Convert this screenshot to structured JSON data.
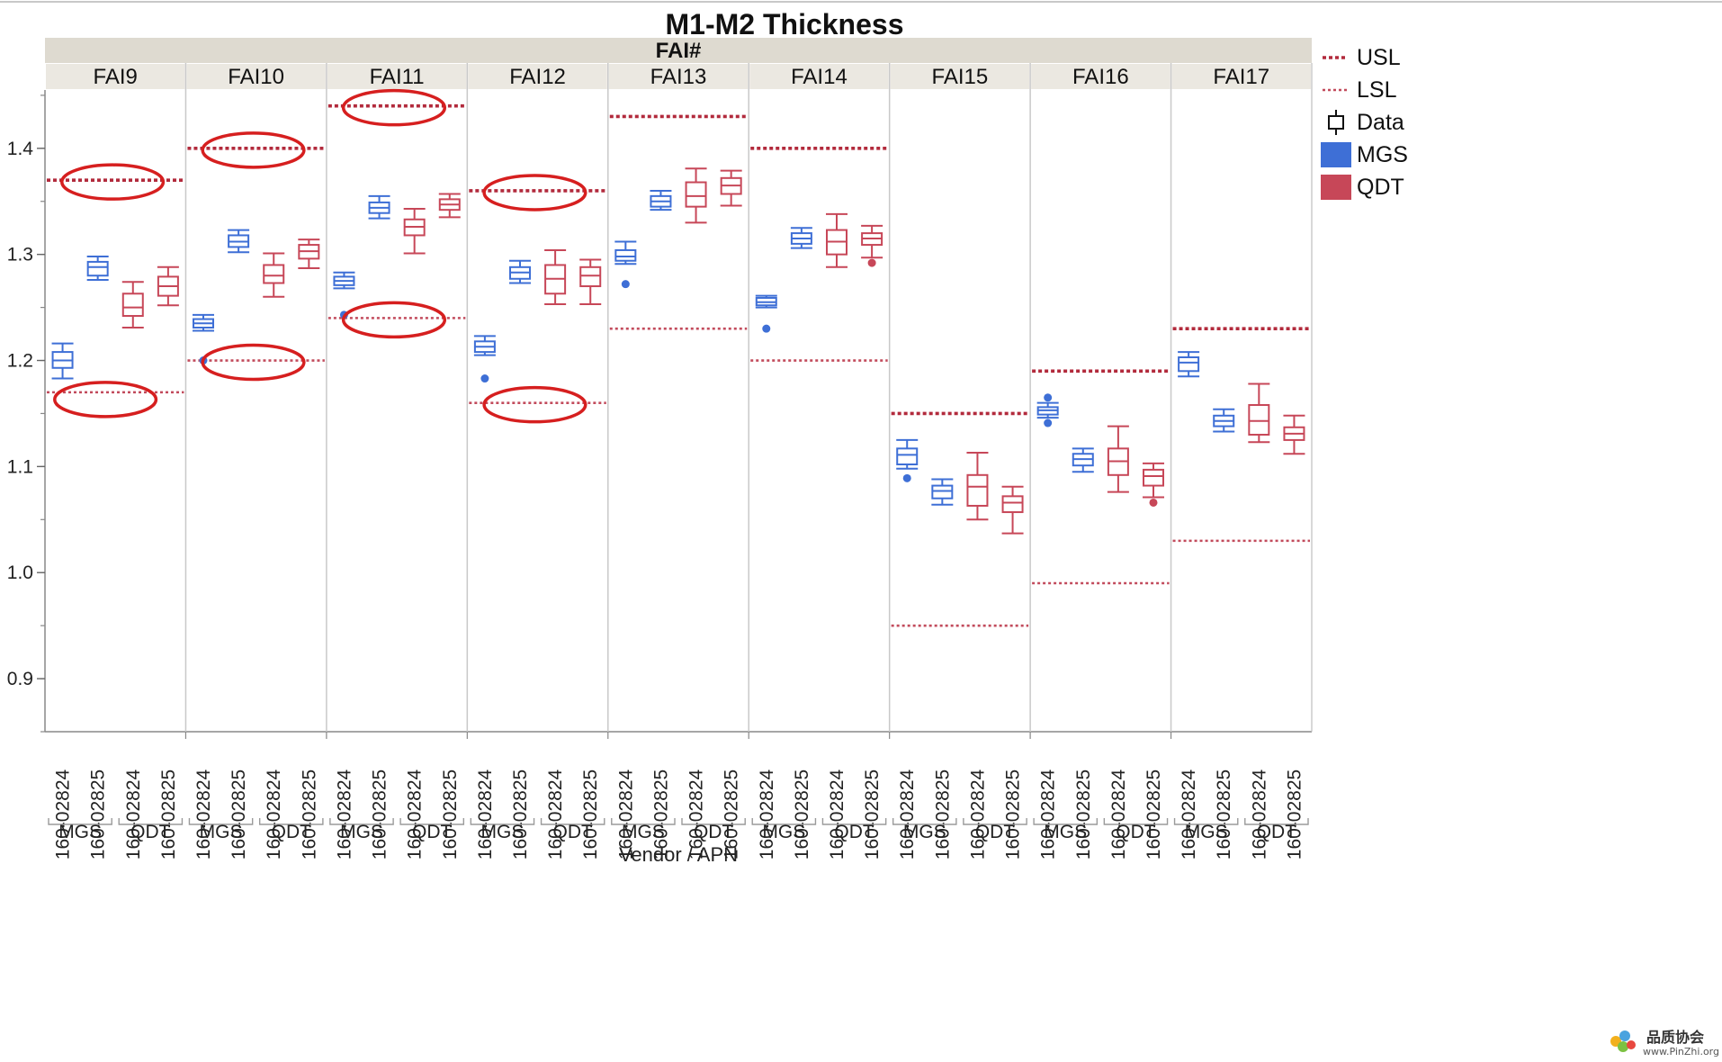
{
  "chart_data": {
    "type": "boxplot",
    "title": "M1-M2 Thickness",
    "group_header": "FAI#",
    "xlabel": "Vendor / APN",
    "ylabel": "",
    "ylim": [
      0.85,
      1.455
    ],
    "yticks": [
      0.9,
      1.0,
      1.1,
      1.2,
      1.3,
      1.4
    ],
    "ytick_labels": [
      "0.9",
      "1.0",
      "1.1",
      "1.2",
      "1.3",
      "1.4"
    ],
    "colors": {
      "MGS": "#3e6fd6",
      "QDT": "#c74758",
      "spec": "#b22a3c",
      "highlight": "#d61f1f"
    },
    "legend": {
      "position": "right",
      "items": [
        {
          "label": "USL",
          "kind": "usl"
        },
        {
          "label": "LSL",
          "kind": "lsl"
        },
        {
          "label": "Data",
          "kind": "box"
        },
        {
          "label": "MGS",
          "kind": "swatch",
          "color": "#3e6fd6"
        },
        {
          "label": "QDT",
          "kind": "swatch",
          "color": "#c74758"
        }
      ]
    },
    "panels": [
      {
        "name": "FAI9",
        "usl": 1.37,
        "lsl": 1.17,
        "highlight": [
          "usl",
          "lsl"
        ],
        "boxes": [
          {
            "vendor": "MGS",
            "apn": "160-02824",
            "min": 1.183,
            "q1": 1.193,
            "median": 1.2,
            "q3": 1.208,
            "max": 1.216,
            "outliers": []
          },
          {
            "vendor": "MGS",
            "apn": "160-02825",
            "min": 1.276,
            "q1": 1.28,
            "median": 1.288,
            "q3": 1.293,
            "max": 1.298,
            "outliers": []
          },
          {
            "vendor": "QDT",
            "apn": "160-02824",
            "min": 1.231,
            "q1": 1.242,
            "median": 1.25,
            "q3": 1.263,
            "max": 1.274,
            "outliers": []
          },
          {
            "vendor": "QDT",
            "apn": "160-02825",
            "min": 1.252,
            "q1": 1.261,
            "median": 1.27,
            "q3": 1.279,
            "max": 1.288,
            "outliers": []
          }
        ]
      },
      {
        "name": "FAI10",
        "usl": 1.4,
        "lsl": 1.2,
        "highlight": [
          "usl",
          "lsl"
        ],
        "boxes": [
          {
            "vendor": "MGS",
            "apn": "160-02824",
            "min": 1.228,
            "q1": 1.231,
            "median": 1.235,
            "q3": 1.239,
            "max": 1.243,
            "outliers": [
              1.2
            ]
          },
          {
            "vendor": "MGS",
            "apn": "160-02825",
            "min": 1.302,
            "q1": 1.307,
            "median": 1.312,
            "q3": 1.318,
            "max": 1.323,
            "outliers": []
          },
          {
            "vendor": "QDT",
            "apn": "160-02824",
            "min": 1.26,
            "q1": 1.273,
            "median": 1.28,
            "q3": 1.29,
            "max": 1.301,
            "outliers": []
          },
          {
            "vendor": "QDT",
            "apn": "160-02825",
            "min": 1.287,
            "q1": 1.296,
            "median": 1.303,
            "q3": 1.309,
            "max": 1.314,
            "outliers": []
          }
        ]
      },
      {
        "name": "FAI11",
        "usl": 1.44,
        "lsl": 1.24,
        "highlight": [
          "usl",
          "lsl"
        ],
        "boxes": [
          {
            "vendor": "MGS",
            "apn": "160-02824",
            "min": 1.268,
            "q1": 1.271,
            "median": 1.275,
            "q3": 1.279,
            "max": 1.283,
            "outliers": [
              1.243
            ]
          },
          {
            "vendor": "MGS",
            "apn": "160-02825",
            "min": 1.334,
            "q1": 1.339,
            "median": 1.344,
            "q3": 1.349,
            "max": 1.355,
            "outliers": []
          },
          {
            "vendor": "QDT",
            "apn": "160-02824",
            "min": 1.301,
            "q1": 1.318,
            "median": 1.326,
            "q3": 1.333,
            "max": 1.343,
            "outliers": []
          },
          {
            "vendor": "QDT",
            "apn": "160-02825",
            "min": 1.335,
            "q1": 1.342,
            "median": 1.347,
            "q3": 1.352,
            "max": 1.357,
            "outliers": []
          }
        ]
      },
      {
        "name": "FAI12",
        "usl": 1.36,
        "lsl": 1.16,
        "highlight": [
          "usl",
          "lsl"
        ],
        "boxes": [
          {
            "vendor": "MGS",
            "apn": "160-02824",
            "min": 1.205,
            "q1": 1.208,
            "median": 1.213,
            "q3": 1.218,
            "max": 1.223,
            "outliers": [
              1.183
            ]
          },
          {
            "vendor": "MGS",
            "apn": "160-02825",
            "min": 1.273,
            "q1": 1.277,
            "median": 1.283,
            "q3": 1.288,
            "max": 1.294,
            "outliers": []
          },
          {
            "vendor": "QDT",
            "apn": "160-02824",
            "min": 1.253,
            "q1": 1.263,
            "median": 1.277,
            "q3": 1.29,
            "max": 1.304,
            "outliers": []
          },
          {
            "vendor": "QDT",
            "apn": "160-02825",
            "min": 1.253,
            "q1": 1.27,
            "median": 1.28,
            "q3": 1.288,
            "max": 1.295,
            "outliers": []
          }
        ]
      },
      {
        "name": "FAI13",
        "usl": 1.43,
        "lsl": 1.23,
        "highlight": [],
        "boxes": [
          {
            "vendor": "MGS",
            "apn": "160-02824",
            "min": 1.291,
            "q1": 1.294,
            "median": 1.298,
            "q3": 1.304,
            "max": 1.312,
            "outliers": [
              1.272
            ]
          },
          {
            "vendor": "MGS",
            "apn": "160-02825",
            "min": 1.342,
            "q1": 1.345,
            "median": 1.35,
            "q3": 1.355,
            "max": 1.36,
            "outliers": []
          },
          {
            "vendor": "QDT",
            "apn": "160-02824",
            "min": 1.33,
            "q1": 1.345,
            "median": 1.355,
            "q3": 1.368,
            "max": 1.381,
            "outliers": []
          },
          {
            "vendor": "QDT",
            "apn": "160-02825",
            "min": 1.346,
            "q1": 1.357,
            "median": 1.365,
            "q3": 1.372,
            "max": 1.379,
            "outliers": []
          }
        ]
      },
      {
        "name": "FAI14",
        "usl": 1.4,
        "lsl": 1.2,
        "highlight": [],
        "boxes": [
          {
            "vendor": "MGS",
            "apn": "160-02824",
            "min": 1.25,
            "q1": 1.252,
            "median": 1.255,
            "q3": 1.259,
            "max": 1.261,
            "outliers": [
              1.23
            ]
          },
          {
            "vendor": "MGS",
            "apn": "160-02825",
            "min": 1.306,
            "q1": 1.31,
            "median": 1.315,
            "q3": 1.32,
            "max": 1.325,
            "outliers": []
          },
          {
            "vendor": "QDT",
            "apn": "160-02824",
            "min": 1.288,
            "q1": 1.3,
            "median": 1.312,
            "q3": 1.323,
            "max": 1.338,
            "outliers": []
          },
          {
            "vendor": "QDT",
            "apn": "160-02825",
            "min": 1.297,
            "q1": 1.309,
            "median": 1.315,
            "q3": 1.32,
            "max": 1.327,
            "outliers": [
              1.292
            ]
          }
        ]
      },
      {
        "name": "FAI15",
        "usl": 1.15,
        "lsl": 0.95,
        "highlight": [],
        "boxes": [
          {
            "vendor": "MGS",
            "apn": "160-02824",
            "min": 1.098,
            "q1": 1.102,
            "median": 1.111,
            "q3": 1.117,
            "max": 1.125,
            "outliers": [
              1.089
            ]
          },
          {
            "vendor": "MGS",
            "apn": "160-02825",
            "min": 1.064,
            "q1": 1.07,
            "median": 1.077,
            "q3": 1.082,
            "max": 1.088,
            "outliers": []
          },
          {
            "vendor": "QDT",
            "apn": "160-02824",
            "min": 1.05,
            "q1": 1.063,
            "median": 1.081,
            "q3": 1.092,
            "max": 1.113,
            "outliers": []
          },
          {
            "vendor": "QDT",
            "apn": "160-02825",
            "min": 1.037,
            "q1": 1.057,
            "median": 1.066,
            "q3": 1.072,
            "max": 1.081,
            "outliers": []
          }
        ]
      },
      {
        "name": "FAI16",
        "usl": 1.19,
        "lsl": 0.99,
        "highlight": [],
        "boxes": [
          {
            "vendor": "MGS",
            "apn": "160-02824",
            "min": 1.146,
            "q1": 1.149,
            "median": 1.153,
            "q3": 1.156,
            "max": 1.16,
            "outliers": [
              1.165,
              1.141
            ]
          },
          {
            "vendor": "MGS",
            "apn": "160-02825",
            "min": 1.095,
            "q1": 1.101,
            "median": 1.107,
            "q3": 1.112,
            "max": 1.117,
            "outliers": []
          },
          {
            "vendor": "QDT",
            "apn": "160-02824",
            "min": 1.076,
            "q1": 1.092,
            "median": 1.105,
            "q3": 1.117,
            "max": 1.138,
            "outliers": []
          },
          {
            "vendor": "QDT",
            "apn": "160-02825",
            "min": 1.071,
            "q1": 1.082,
            "median": 1.091,
            "q3": 1.097,
            "max": 1.103,
            "outliers": [
              1.066
            ]
          }
        ]
      },
      {
        "name": "FAI17",
        "usl": 1.23,
        "lsl": 1.03,
        "highlight": [],
        "boxes": [
          {
            "vendor": "MGS",
            "apn": "160-02824",
            "min": 1.185,
            "q1": 1.19,
            "median": 1.198,
            "q3": 1.203,
            "max": 1.208,
            "outliers": []
          },
          {
            "vendor": "MGS",
            "apn": "160-02825",
            "min": 1.133,
            "q1": 1.138,
            "median": 1.143,
            "q3": 1.148,
            "max": 1.154,
            "outliers": []
          },
          {
            "vendor": "QDT",
            "apn": "160-02824",
            "min": 1.123,
            "q1": 1.13,
            "median": 1.143,
            "q3": 1.158,
            "max": 1.178,
            "outliers": []
          },
          {
            "vendor": "QDT",
            "apn": "160-02825",
            "min": 1.112,
            "q1": 1.125,
            "median": 1.131,
            "q3": 1.137,
            "max": 1.148,
            "outliers": []
          }
        ]
      }
    ]
  },
  "watermark": {
    "name": "品质协会",
    "url": "www.PinZhi.org"
  }
}
